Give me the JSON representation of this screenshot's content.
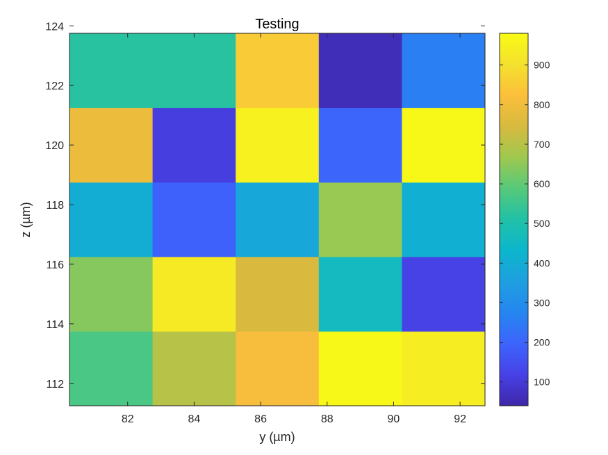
{
  "chart_data": {
    "type": "heatmap",
    "title": "Testing",
    "xlabel": "y (µm)",
    "ylabel": "z (µm)",
    "x_centers": [
      81.5,
      84,
      86.5,
      89,
      91.5
    ],
    "y_centers": [
      112.5,
      115,
      117.5,
      120,
      122.5
    ],
    "values": [
      [
        570,
        700,
        810,
        970,
        940
      ],
      [
        640,
        930,
        750,
        460,
        120
      ],
      [
        400,
        190,
        380,
        660,
        410
      ],
      [
        790,
        110,
        950,
        200,
        970
      ],
      [
        520,
        520,
        850,
        60,
        260
      ]
    ],
    "xlim": [
      80.25,
      92.75
    ],
    "ylim": [
      111.25,
      123.75
    ],
    "xticks": [
      82,
      84,
      86,
      88,
      90,
      92
    ],
    "yticks": [
      112,
      114,
      116,
      118,
      120,
      122,
      124
    ],
    "colorbar": {
      "min": 40,
      "max": 980,
      "ticks": [
        100,
        200,
        300,
        400,
        500,
        600,
        700,
        800,
        900
      ],
      "colormap": [
        "#3e26a8",
        "#4741e6",
        "#3d64fd",
        "#2586f0",
        "#1e9fe0",
        "#0cb6cc",
        "#21c1a7",
        "#56c97a",
        "#9fc84f",
        "#d7ba3f",
        "#fcbf3b",
        "#f4e12e",
        "#f9fb15"
      ]
    },
    "grid": false,
    "legend": "none"
  }
}
